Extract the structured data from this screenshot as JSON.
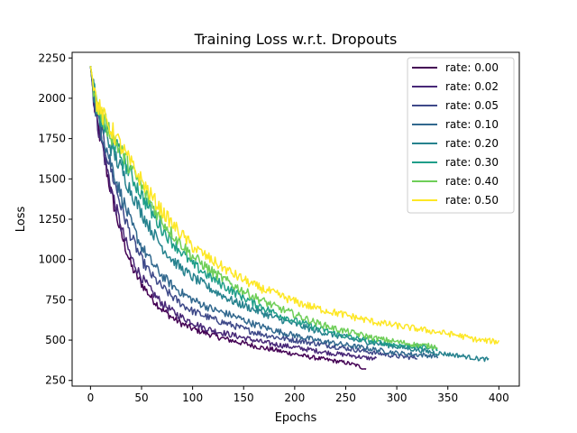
{
  "chart_data": {
    "type": "line",
    "title": "Training Loss w.r.t. Dropouts",
    "xlabel": "Epochs",
    "ylabel": "Loss",
    "xlim": [
      -18,
      420
    ],
    "ylim": [
      215,
      2285
    ],
    "x_ticks": [
      0,
      50,
      100,
      150,
      200,
      250,
      300,
      350,
      400
    ],
    "y_ticks": [
      250,
      500,
      750,
      1000,
      1250,
      1500,
      1750,
      2000,
      2250
    ],
    "legend_position": "upper right",
    "grid": false,
    "series": [
      {
        "name": "rate: 0.00",
        "color": "#440154",
        "x": [
          0,
          5,
          10,
          15,
          20,
          25,
          30,
          35,
          40,
          45,
          50,
          60,
          70,
          80,
          90,
          100,
          110,
          120,
          130,
          140,
          150,
          160,
          170,
          180,
          190,
          200,
          210,
          220,
          230,
          240,
          250,
          260,
          270
        ],
        "y": [
          2200,
          1880,
          1750,
          1580,
          1420,
          1280,
          1160,
          1060,
          960,
          900,
          850,
          760,
          690,
          640,
          600,
          570,
          550,
          530,
          510,
          495,
          480,
          465,
          450,
          440,
          425,
          415,
          400,
          390,
          380,
          370,
          360,
          345,
          320
        ]
      },
      {
        "name": "rate: 0.02",
        "color": "#482878",
        "x": [
          0,
          5,
          10,
          15,
          20,
          25,
          30,
          35,
          40,
          45,
          50,
          60,
          70,
          80,
          90,
          100,
          110,
          120,
          130,
          140,
          150,
          160,
          170,
          180,
          190,
          200,
          210,
          220,
          230,
          240,
          250,
          260,
          270,
          280
        ],
        "y": [
          2200,
          1900,
          1760,
          1600,
          1450,
          1320,
          1200,
          1100,
          1010,
          950,
          890,
          800,
          730,
          680,
          640,
          610,
          580,
          560,
          545,
          530,
          515,
          500,
          485,
          475,
          465,
          455,
          445,
          435,
          425,
          415,
          410,
          400,
          390,
          385
        ]
      },
      {
        "name": "rate: 0.05",
        "color": "#3e4989",
        "x": [
          0,
          5,
          10,
          20,
          30,
          40,
          50,
          60,
          70,
          80,
          90,
          100,
          120,
          140,
          160,
          180,
          200,
          220,
          240,
          260,
          280,
          300,
          320
        ],
        "y": [
          2200,
          1920,
          1800,
          1560,
          1330,
          1140,
          1000,
          900,
          830,
          770,
          720,
          680,
          630,
          590,
          550,
          520,
          500,
          480,
          460,
          440,
          420,
          400,
          390
        ]
      },
      {
        "name": "rate: 0.10",
        "color": "#31688e",
        "x": [
          0,
          5,
          10,
          20,
          30,
          40,
          50,
          60,
          70,
          80,
          90,
          100,
          120,
          140,
          160,
          180,
          200,
          220,
          240,
          260,
          280,
          300,
          320,
          340
        ],
        "y": [
          2200,
          1940,
          1820,
          1600,
          1400,
          1220,
          1080,
          980,
          900,
          840,
          790,
          750,
          690,
          650,
          600,
          560,
          530,
          500,
          480,
          460,
          440,
          420,
          410,
          400
        ]
      },
      {
        "name": "rate: 0.20",
        "color": "#26828e",
        "x": [
          0,
          5,
          10,
          20,
          30,
          40,
          50,
          60,
          70,
          80,
          90,
          100,
          120,
          140,
          160,
          180,
          200,
          220,
          240,
          260,
          280,
          300,
          320,
          340,
          360,
          380,
          390
        ],
        "y": [
          2200,
          1960,
          1850,
          1700,
          1560,
          1420,
          1290,
          1180,
          1080,
          1000,
          940,
          890,
          810,
          740,
          690,
          640,
          600,
          560,
          530,
          500,
          480,
          460,
          440,
          420,
          405,
          385,
          380
        ]
      },
      {
        "name": "rate: 0.30",
        "color": "#1f9e89",
        "x": [
          0,
          5,
          10,
          20,
          30,
          40,
          50,
          60,
          70,
          80,
          90,
          100,
          120,
          140,
          160,
          180,
          200,
          220,
          240,
          260,
          280,
          300,
          320,
          340
        ],
        "y": [
          2200,
          1980,
          1880,
          1760,
          1640,
          1520,
          1400,
          1290,
          1190,
          1110,
          1040,
          970,
          880,
          800,
          730,
          670,
          620,
          580,
          540,
          510,
          490,
          470,
          460,
          450
        ]
      },
      {
        "name": "rate: 0.40",
        "color": "#6ece58",
        "x": [
          0,
          5,
          10,
          20,
          30,
          40,
          50,
          60,
          70,
          80,
          90,
          100,
          120,
          140,
          160,
          180,
          200,
          220,
          240,
          260,
          280,
          300,
          320,
          340
        ],
        "y": [
          2200,
          1990,
          1900,
          1780,
          1670,
          1560,
          1450,
          1340,
          1240,
          1160,
          1090,
          1020,
          920,
          840,
          770,
          710,
          660,
          610,
          570,
          540,
          510,
          490,
          470,
          460
        ]
      },
      {
        "name": "rate: 0.50",
        "color": "#fde725",
        "x": [
          0,
          5,
          10,
          20,
          30,
          40,
          50,
          60,
          70,
          80,
          90,
          100,
          120,
          140,
          160,
          180,
          200,
          220,
          240,
          260,
          280,
          300,
          320,
          340,
          360,
          380,
          400
        ],
        "y": [
          2200,
          2000,
          1910,
          1810,
          1700,
          1590,
          1490,
          1390,
          1300,
          1220,
          1150,
          1080,
          990,
          910,
          840,
          790,
          740,
          700,
          670,
          640,
          610,
          590,
          570,
          550,
          530,
          500,
          490
        ]
      }
    ]
  }
}
